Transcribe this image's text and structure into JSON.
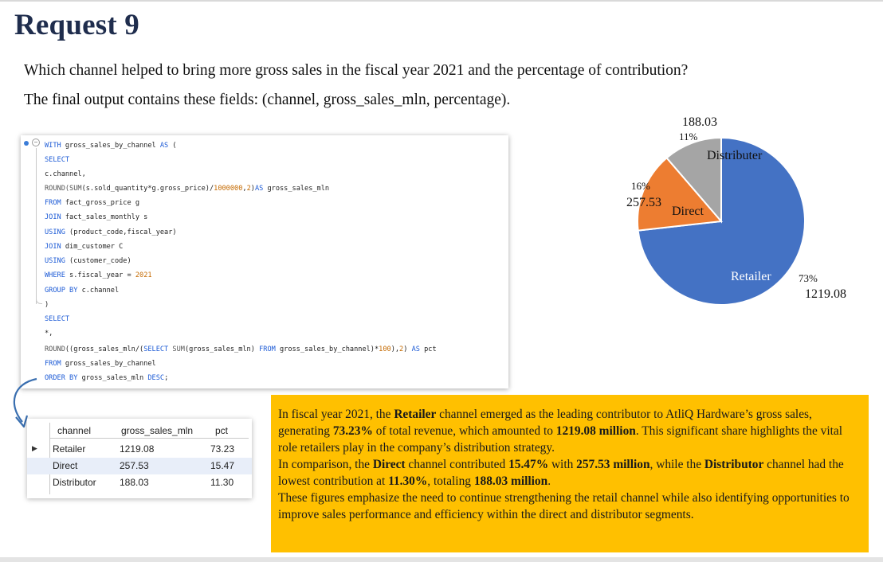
{
  "title": "Request 9",
  "question": "Which channel helped to bring more gross sales in the fiscal year 2021 and the percentage of contribution?",
  "output_fields": "The final output contains these fields: (channel, gross_sales_mln, percentage).",
  "sql": {
    "lines": [
      [
        {
          "t": "WITH ",
          "c": "kw"
        },
        {
          "t": "gross_sales_by_channel ",
          "c": ""
        },
        {
          "t": "AS",
          "c": "kw"
        },
        {
          "t": " (",
          "c": ""
        }
      ],
      [
        {
          "t": "SELECT",
          "c": "kw"
        }
      ],
      [
        {
          "t": "c.channel,",
          "c": ""
        }
      ],
      [
        {
          "t": "ROUND(",
          "c": "fn"
        },
        {
          "t": "SUM",
          "c": "fn"
        },
        {
          "t": "(s.sold_quantity*g.gross_price)/",
          "c": ""
        },
        {
          "t": "1000000",
          "c": "num"
        },
        {
          "t": ",",
          "c": ""
        },
        {
          "t": "2",
          "c": "num"
        },
        {
          "t": ")",
          "c": ""
        },
        {
          "t": "AS",
          "c": "kw"
        },
        {
          "t": " gross_sales_mln",
          "c": ""
        }
      ],
      [
        {
          "t": "FROM",
          "c": "kw"
        },
        {
          "t": " fact_gross_price g",
          "c": ""
        }
      ],
      [
        {
          "t": "JOIN",
          "c": "kw"
        },
        {
          "t": " fact_sales_monthly s",
          "c": ""
        }
      ],
      [
        {
          "t": "USING",
          "c": "kw"
        },
        {
          "t": " (product_code,fiscal_year)",
          "c": ""
        }
      ],
      [
        {
          "t": "JOIN",
          "c": "kw"
        },
        {
          "t": " dim_customer C",
          "c": ""
        }
      ],
      [
        {
          "t": "USING",
          "c": "kw"
        },
        {
          "t": " (customer_code)",
          "c": ""
        }
      ],
      [
        {
          "t": "WHERE",
          "c": "kw"
        },
        {
          "t": " s.fiscal_year = ",
          "c": ""
        },
        {
          "t": "2021",
          "c": "num"
        }
      ],
      [
        {
          "t": "GROUP BY",
          "c": "kw"
        },
        {
          "t": " c.channel",
          "c": ""
        }
      ],
      [
        {
          "t": ")",
          "c": ""
        }
      ],
      [
        {
          "t": "SELECT",
          "c": "kw"
        }
      ],
      [
        {
          "t": "*,",
          "c": ""
        }
      ],
      [
        {
          "t": "ROUND",
          "c": "fn"
        },
        {
          "t": "((gross_sales_mln/(",
          "c": ""
        },
        {
          "t": "SELECT",
          "c": "kw"
        },
        {
          "t": " ",
          "c": ""
        },
        {
          "t": "SUM",
          "c": "fn"
        },
        {
          "t": "(gross_sales_mln) ",
          "c": ""
        },
        {
          "t": "FROM",
          "c": "kw"
        },
        {
          "t": " gross_sales_by_channel)*",
          "c": ""
        },
        {
          "t": "100",
          "c": "num"
        },
        {
          "t": "),",
          "c": ""
        },
        {
          "t": "2",
          "c": "num"
        },
        {
          "t": ") ",
          "c": ""
        },
        {
          "t": "AS",
          "c": "kw"
        },
        {
          "t": " pct",
          "c": ""
        }
      ],
      [
        {
          "t": "FROM",
          "c": "kw"
        },
        {
          "t": " gross_sales_by_channel",
          "c": ""
        }
      ],
      [
        {
          "t": "ORDER BY",
          "c": "kw"
        },
        {
          "t": " gross_sales_mln ",
          "c": ""
        },
        {
          "t": "DESC",
          "c": "kw"
        },
        {
          "t": ";",
          "c": ""
        }
      ]
    ]
  },
  "result_grid": {
    "columns": [
      "channel",
      "gross_sales_mln",
      "pct"
    ],
    "rows": [
      [
        "Retailer",
        "1219.08",
        "73.23"
      ],
      [
        "Direct",
        "257.53",
        "15.47"
      ],
      [
        "Distributor",
        "188.03",
        "11.30"
      ]
    ]
  },
  "chart_data": {
    "type": "pie",
    "title": "",
    "slices": [
      {
        "name": "Retailer",
        "value": 1219.08,
        "pct_label": "73%",
        "value_label": "1219.08",
        "color": "#4472c4"
      },
      {
        "name": "Direct",
        "value": 257.53,
        "pct_label": "16%",
        "value_label": "257.53",
        "color": "#ed7d31"
      },
      {
        "name": "Distributer",
        "value": 188.03,
        "pct_label": "11%",
        "value_label": "188.03",
        "color": "#a5a5a5"
      }
    ]
  },
  "summary": {
    "p1": [
      {
        "t": "In fiscal year 2021, the ",
        "b": false
      },
      {
        "t": "Retailer",
        "b": true
      },
      {
        "t": " channel emerged as the leading contributor to AtliQ Hardware’s gross sales, generating ",
        "b": false
      },
      {
        "t": "73.23%",
        "b": true
      },
      {
        "t": " of total revenue, which amounted to ",
        "b": false
      },
      {
        "t": "1219.08 million",
        "b": true
      },
      {
        "t": ". This significant share highlights the vital role retailers play in the company’s distribution strategy.",
        "b": false
      }
    ],
    "p2": [
      {
        "t": "In comparison, the ",
        "b": false
      },
      {
        "t": "Direct",
        "b": true
      },
      {
        "t": " channel contributed ",
        "b": false
      },
      {
        "t": "15.47%",
        "b": true
      },
      {
        "t": " with ",
        "b": false
      },
      {
        "t": "257.53 million",
        "b": true
      },
      {
        "t": ", while the ",
        "b": false
      },
      {
        "t": "Distributor",
        "b": true
      },
      {
        "t": " channel had the lowest contribution at ",
        "b": false
      },
      {
        "t": "11.30%",
        "b": true
      },
      {
        "t": ", totaling ",
        "b": false
      },
      {
        "t": "188.03 million",
        "b": true
      },
      {
        "t": ".",
        "b": false
      }
    ],
    "p3": [
      {
        "t": "These figures emphasize the need to continue strengthening the retail channel while also identifying opportunities to improve sales performance and efficiency within the direct and distributor segments.",
        "b": false
      }
    ]
  }
}
